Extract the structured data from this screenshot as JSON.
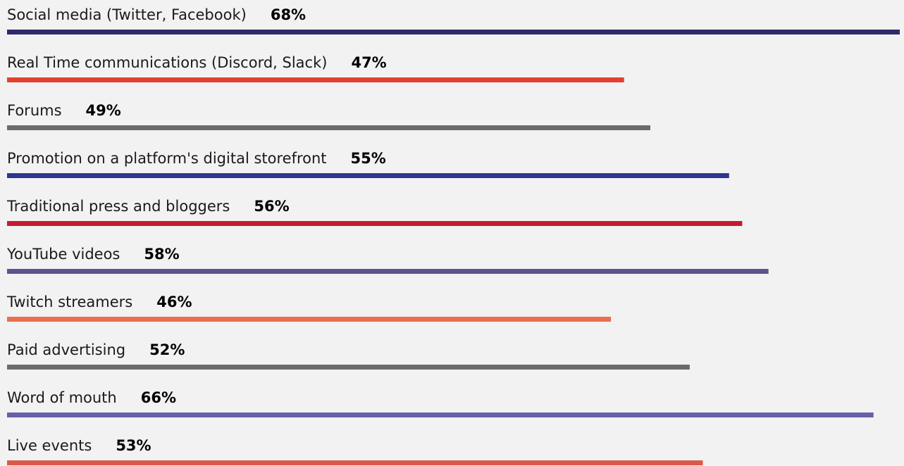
{
  "chart_data": {
    "type": "bar",
    "categories": [
      "Social media (Twitter, Facebook)",
      "Real Time communications (Discord, Slack)",
      "Forums",
      "Promotion on a platform's digital storefront",
      "Traditional press and bloggers",
      "YouTube videos",
      "Twitch streamers",
      "Paid advertising",
      "Word of mouth",
      "Live events"
    ],
    "values": [
      68,
      47,
      49,
      55,
      56,
      58,
      46,
      52,
      66,
      53
    ],
    "value_labels": [
      "68%",
      "47%",
      "49%",
      "55%",
      "56%",
      "58%",
      "46%",
      "52%",
      "66%",
      "53%"
    ],
    "colors": [
      "#2e2a6b",
      "#e53f2f",
      "#6b6b6b",
      "#2e3592",
      "#c41a30",
      "#5a5490",
      "#e8704f",
      "#6b6b6b",
      "#6660a8",
      "#d95a4a"
    ]
  }
}
